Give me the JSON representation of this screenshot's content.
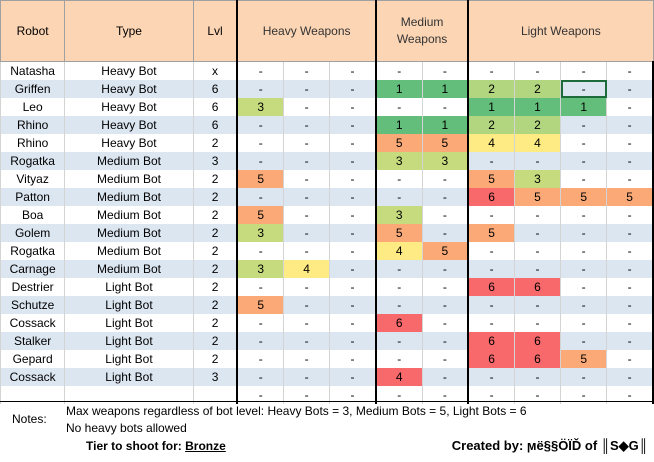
{
  "headers": {
    "robot": "Robot",
    "type": "Type",
    "lvl": "Lvl",
    "heavy": "Heavy Weapons",
    "medium": "Medium Weapons",
    "light": "Light Weapons"
  },
  "colors": {
    "header_bg": "#fcd5b4",
    "alt_row": "#dce6f1",
    "green": "#63be7b",
    "light_green": "#b2d580",
    "yellow_green": "#c6db7e",
    "yellow": "#ffeb84",
    "orange": "#fbaa77",
    "red": "#f8696b"
  },
  "rows": [
    {
      "robot": "Natasha",
      "type": "Heavy Bot",
      "lvl": "x",
      "cells": [
        "-",
        "-",
        "-",
        "-",
        "-",
        "-",
        "-",
        "-",
        "-"
      ],
      "colors": [
        "",
        "",
        "",
        "",
        "",
        "",
        "",
        "",
        ""
      ]
    },
    {
      "robot": "Griffen",
      "type": "Heavy Bot",
      "lvl": "6",
      "cells": [
        "-",
        "-",
        "-",
        "1",
        "1",
        "2",
        "2",
        "-",
        "-"
      ],
      "colors": [
        "",
        "",
        "",
        "green",
        "green",
        "lgreen",
        "lgreen",
        "",
        ""
      ]
    },
    {
      "robot": "Leo",
      "type": "Heavy Bot",
      "lvl": "6",
      "cells": [
        "3",
        "-",
        "-",
        "-",
        "-",
        "1",
        "1",
        "1",
        "-"
      ],
      "colors": [
        "lyellow",
        "",
        "",
        "",
        "",
        "green",
        "green",
        "green",
        ""
      ]
    },
    {
      "robot": "Rhino",
      "type": "Heavy Bot",
      "lvl": "6",
      "cells": [
        "-",
        "-",
        "-",
        "1",
        "1",
        "2",
        "2",
        "-",
        "-"
      ],
      "colors": [
        "",
        "",
        "",
        "green",
        "green",
        "lgreen",
        "lgreen",
        "",
        ""
      ]
    },
    {
      "robot": "Rhino",
      "type": "Heavy Bot",
      "lvl": "2",
      "cells": [
        "-",
        "-",
        "-",
        "5",
        "5",
        "4",
        "4",
        "-",
        "-"
      ],
      "colors": [
        "",
        "",
        "",
        "orange",
        "orange",
        "yellow",
        "yellow",
        "",
        ""
      ]
    },
    {
      "robot": "Rogatka",
      "type": "Medium Bot",
      "lvl": "3",
      "cells": [
        "-",
        "-",
        "-",
        "3",
        "3",
        "-",
        "-",
        "-",
        "-"
      ],
      "colors": [
        "",
        "",
        "",
        "lyellow",
        "lyellow",
        "",
        "",
        "",
        ""
      ]
    },
    {
      "robot": "Vityaz",
      "type": "Medium Bot",
      "lvl": "2",
      "cells": [
        "5",
        "-",
        "-",
        "-",
        "-",
        "5",
        "3",
        "-",
        "-"
      ],
      "colors": [
        "orange",
        "",
        "",
        "",
        "",
        "orange",
        "lyellow",
        "",
        ""
      ]
    },
    {
      "robot": "Patton",
      "type": "Medium Bot",
      "lvl": "2",
      "cells": [
        "-",
        "-",
        "-",
        "-",
        "-",
        "6",
        "5",
        "5",
        "5"
      ],
      "colors": [
        "",
        "",
        "",
        "",
        "",
        "red",
        "orange",
        "orange",
        "orange"
      ]
    },
    {
      "robot": "Boa",
      "type": "Medium Bot",
      "lvl": "2",
      "cells": [
        "5",
        "-",
        "-",
        "3",
        "-",
        "-",
        "-",
        "-",
        "-"
      ],
      "colors": [
        "orange",
        "",
        "",
        "lyellow",
        "",
        "",
        "",
        "",
        ""
      ]
    },
    {
      "robot": "Golem",
      "type": "Medium Bot",
      "lvl": "2",
      "cells": [
        "3",
        "-",
        "-",
        "5",
        "-",
        "5",
        "-",
        "-",
        "-"
      ],
      "colors": [
        "lyellow",
        "",
        "",
        "orange",
        "",
        "orange",
        "",
        "",
        ""
      ]
    },
    {
      "robot": "Rogatka",
      "type": "Medium Bot",
      "lvl": "2",
      "cells": [
        "-",
        "-",
        "-",
        "4",
        "5",
        "-",
        "-",
        "-",
        "-"
      ],
      "colors": [
        "",
        "",
        "",
        "yellow",
        "orange",
        "",
        "",
        "",
        ""
      ]
    },
    {
      "robot": "Carnage",
      "type": "Medium Bot",
      "lvl": "2",
      "cells": [
        "3",
        "4",
        "-",
        "-",
        "-",
        "-",
        "-",
        "-",
        "-"
      ],
      "colors": [
        "lyellow",
        "yellow",
        "",
        "",
        "",
        "",
        "",
        "",
        ""
      ]
    },
    {
      "robot": "Destrier",
      "type": "Light Bot",
      "lvl": "2",
      "cells": [
        "-",
        "-",
        "-",
        "-",
        "-",
        "6",
        "6",
        "-",
        "-"
      ],
      "colors": [
        "",
        "",
        "",
        "",
        "",
        "red",
        "red",
        "",
        ""
      ]
    },
    {
      "robot": "Schutze",
      "type": "Light Bot",
      "lvl": "2",
      "cells": [
        "5",
        "-",
        "-",
        "-",
        "-",
        "-",
        "-",
        "-",
        "-"
      ],
      "colors": [
        "orange",
        "",
        "",
        "",
        "",
        "",
        "",
        "",
        ""
      ]
    },
    {
      "robot": "Cossack",
      "type": "Light Bot",
      "lvl": "2",
      "cells": [
        "-",
        "-",
        "-",
        "6",
        "-",
        "-",
        "-",
        "-",
        "-"
      ],
      "colors": [
        "",
        "",
        "",
        "red",
        "",
        "",
        "",
        "",
        ""
      ]
    },
    {
      "robot": "Stalker",
      "type": "Light Bot",
      "lvl": "2",
      "cells": [
        "-",
        "-",
        "-",
        "-",
        "-",
        "6",
        "6",
        "-",
        "-"
      ],
      "colors": [
        "",
        "",
        "",
        "",
        "",
        "red",
        "red",
        "",
        ""
      ]
    },
    {
      "robot": "Gepard",
      "type": "Light Bot",
      "lvl": "2",
      "cells": [
        "-",
        "-",
        "-",
        "-",
        "-",
        "6",
        "6",
        "5",
        "-"
      ],
      "colors": [
        "",
        "",
        "",
        "",
        "",
        "red",
        "red",
        "orange",
        ""
      ]
    },
    {
      "robot": "Cossack",
      "type": "Light Bot",
      "lvl": "3",
      "cells": [
        "-",
        "-",
        "-",
        "4",
        "-",
        "-",
        "-",
        "-",
        "-"
      ],
      "colors": [
        "",
        "",
        "",
        "red",
        "",
        "",
        "",
        "",
        ""
      ]
    },
    {
      "robot": "",
      "type": "",
      "lvl": "",
      "cells": [
        "-",
        "-",
        "-",
        "-",
        "-",
        "-",
        "-",
        "-",
        "-"
      ],
      "colors": [
        "",
        "",
        "",
        "",
        "",
        "",
        "",
        "",
        ""
      ]
    }
  ],
  "notes": {
    "label": "Notes:",
    "line1": "Max weapons regardless of bot level: Heavy Bots = 3, Medium Bots = 5, Light Bots = 6",
    "line2": "No heavy bots allowed",
    "tier_label": "Tier to shoot for:",
    "tier_value": "Bronze",
    "credit": "Created by: ϻë§§ÖÏĎ of ║S◆G║"
  }
}
